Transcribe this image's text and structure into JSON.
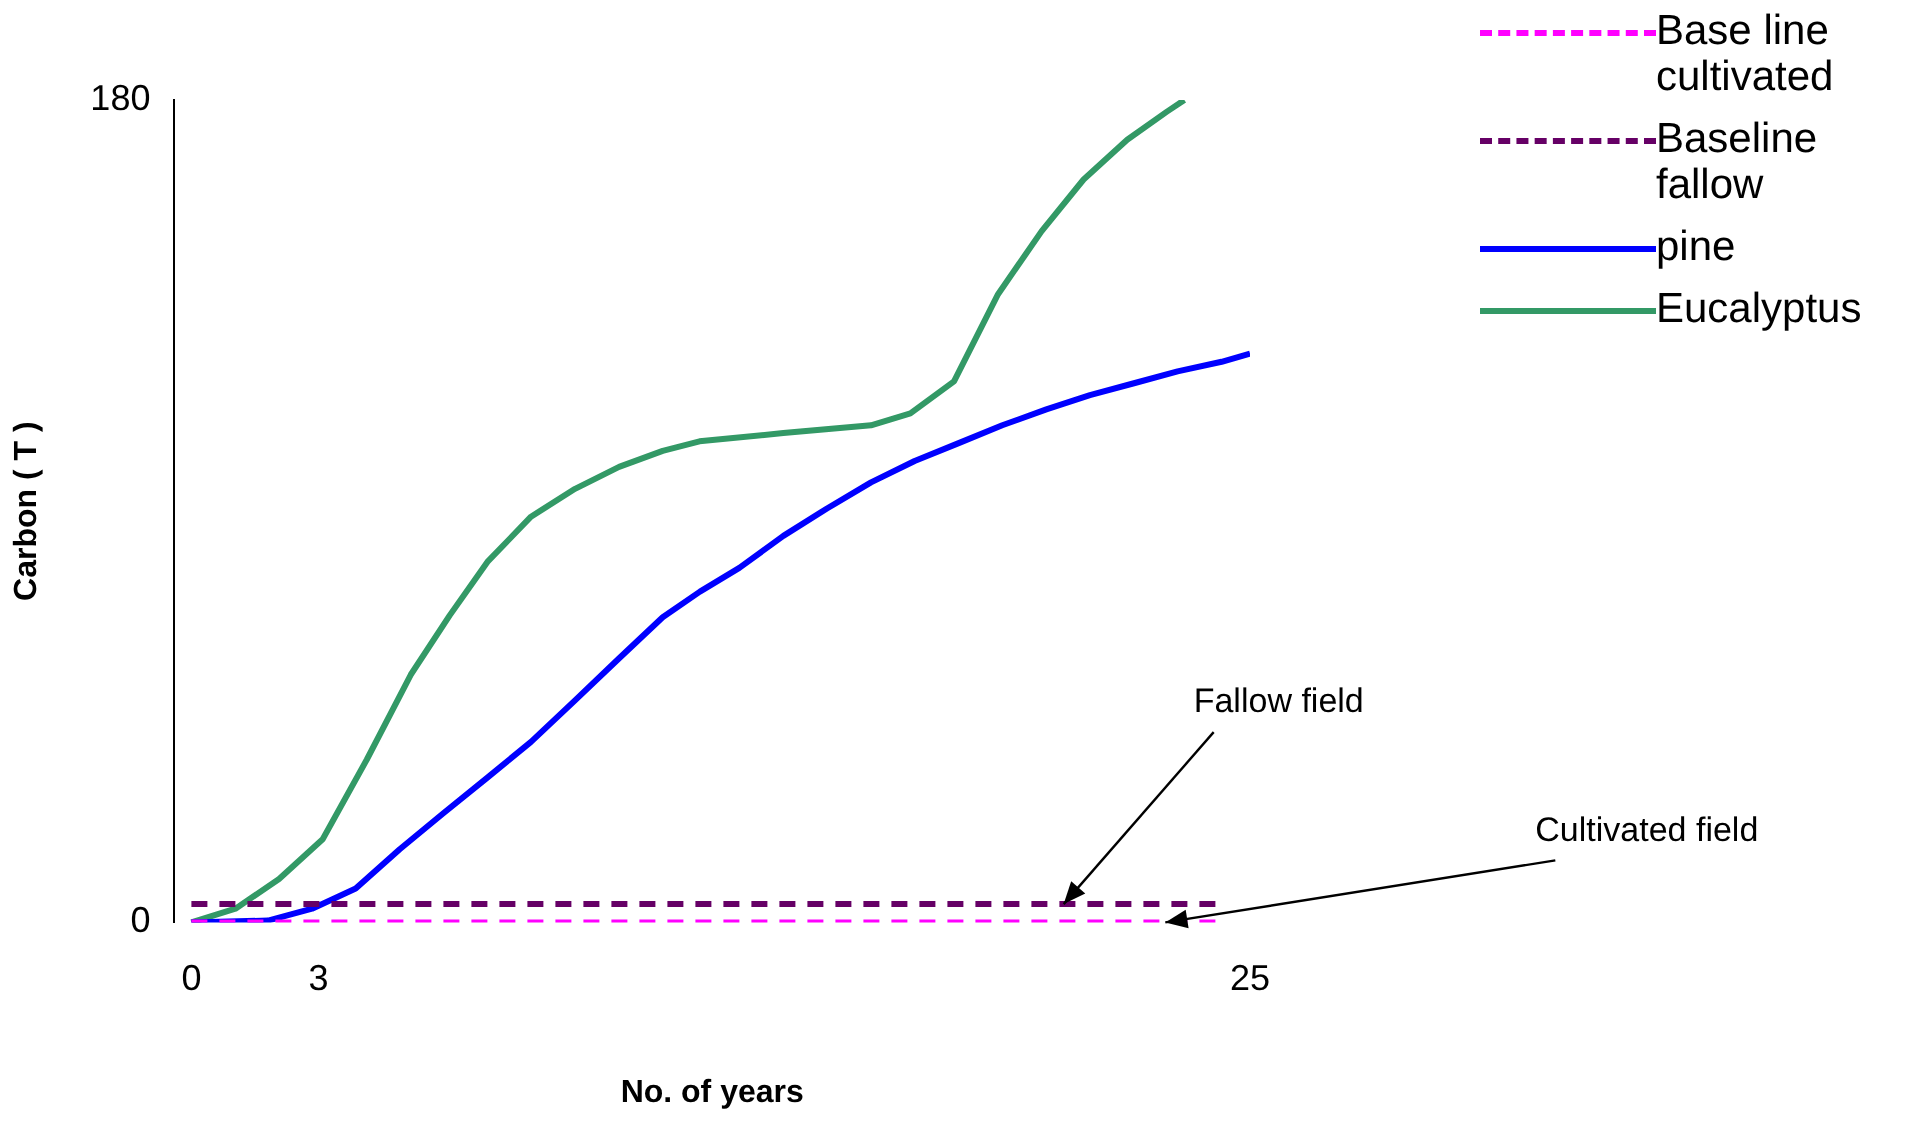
{
  "chart_data": {
    "type": "line",
    "xlabel": "No. of years",
    "ylabel": "Carbon ( T )",
    "xlim": [
      -0.4,
      25
    ],
    "ylim": [
      0,
      180
    ],
    "xticks": [
      0,
      3,
      25
    ],
    "yticks": [
      0,
      180
    ],
    "grid": false,
    "legend": "top right",
    "marker": "none",
    "series": [
      {
        "name": "Base line cultivated",
        "color": "#ff00ff",
        "line_style": "dashed",
        "x": [
          0,
          24.3
        ],
        "values": [
          0,
          0
        ]
      },
      {
        "name": "Baseline fallow",
        "color": "#660066",
        "line_style": "dashed",
        "x": [
          0,
          24.3
        ],
        "values": [
          4,
          4
        ]
      },
      {
        "name": "pine",
        "color": "#0000ff",
        "line_style": "solid",
        "x": [
          0,
          1.81,
          2.85,
          3.88,
          4.92,
          5.95,
          6.99,
          8.02,
          9.06,
          10.09,
          11.13,
          12.01,
          12.94,
          13.98,
          15.01,
          16.05,
          17.08,
          18.12,
          19.15,
          20.19,
          21.22,
          22.26,
          23.29,
          24.33,
          25
        ],
        "values": [
          0,
          0.4,
          3,
          7.4,
          16,
          23.9,
          31.7,
          39.5,
          48.6,
          57.7,
          66.8,
          72.4,
          77.6,
          84.6,
          90.6,
          96.3,
          101,
          104.9,
          108.8,
          112.3,
          115.4,
          118,
          120.6,
          122.7,
          124.5
        ]
      },
      {
        "name": "Eucalyptus",
        "color": "#339966",
        "line_style": "solid",
        "x": [
          0,
          1.04,
          2.07,
          3.1,
          4.14,
          5.18,
          6.1,
          6.99,
          8.02,
          9.06,
          10.1,
          11.13,
          12,
          13.98,
          16.05,
          16.98,
          18.01,
          19.05,
          20.08,
          21.07,
          22.1,
          23.03,
          23.45
        ],
        "values": [
          0,
          3,
          9.5,
          18.2,
          35.6,
          54.2,
          67.2,
          78.9,
          88.8,
          94.9,
          99.7,
          103.2,
          105.3,
          107.1,
          108.8,
          111.4,
          118.4,
          137.5,
          151.3,
          162.6,
          171.3,
          177.4,
          180
        ]
      }
    ],
    "annotations": [
      {
        "text": "Fallow field",
        "x": 20.6,
        "y": 4
      },
      {
        "text": "Cultivated field",
        "x": 23,
        "y": 0
      }
    ]
  }
}
